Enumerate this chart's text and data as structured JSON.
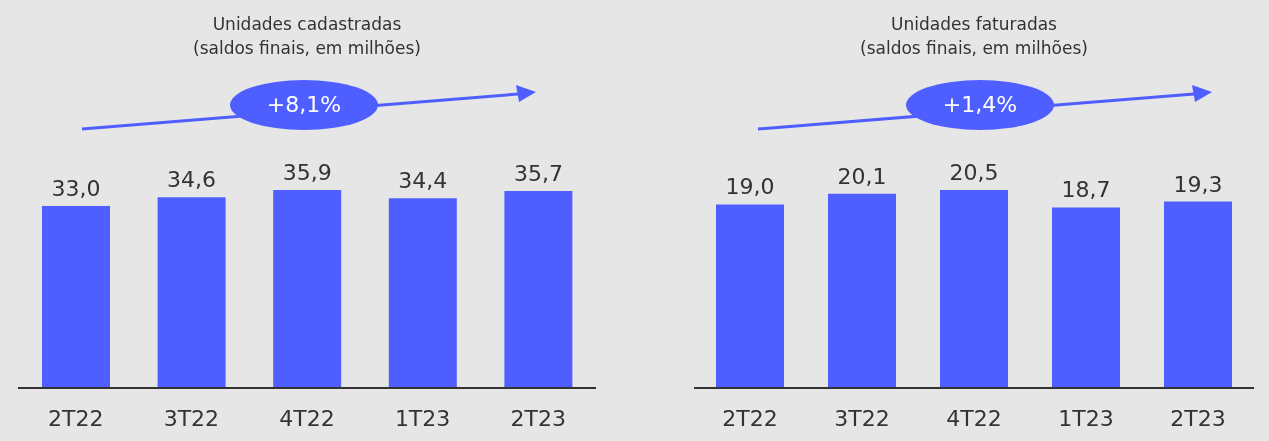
{
  "chart_data": [
    {
      "type": "bar",
      "title": "Unidades cadastradas",
      "subtitle": "(saldos finais, em milhões)",
      "categories": [
        "2T22",
        "3T22",
        "4T22",
        "1T23",
        "2T23"
      ],
      "values": [
        33.0,
        34.6,
        35.9,
        34.4,
        35.7
      ],
      "value_labels": [
        "33,0",
        "34,6",
        "35,9",
        "34,4",
        "35,7"
      ],
      "color": "#4f5fff",
      "annotations": [
        "+8,1%"
      ],
      "grid": false,
      "legend": false
    },
    {
      "type": "bar",
      "title": "Unidades faturadas",
      "subtitle": "(saldos finais, em milhões)",
      "categories": [
        "2T22",
        "3T22",
        "4T22",
        "1T23",
        "2T23"
      ],
      "values": [
        19.0,
        20.1,
        20.5,
        18.7,
        19.3
      ],
      "value_labels": [
        "19,0",
        "20,1",
        "20,5",
        "18,7",
        "19,3"
      ],
      "color": "#4f5fff",
      "annotations": [
        "+1,4%"
      ],
      "grid": false,
      "legend": false
    }
  ]
}
